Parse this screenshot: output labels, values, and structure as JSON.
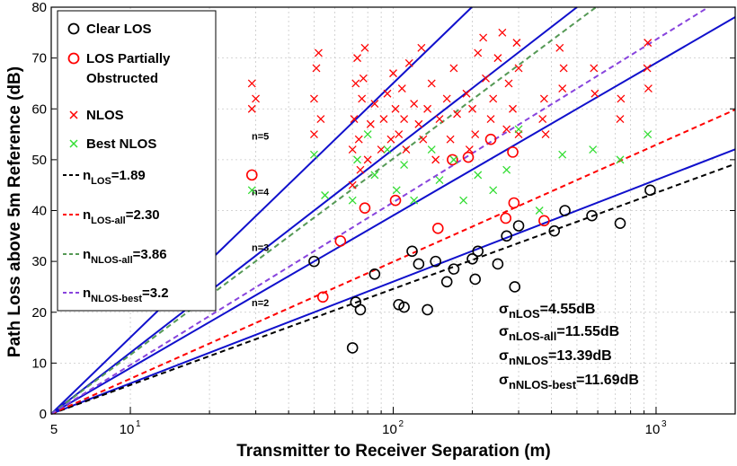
{
  "chart_data": {
    "type": "scatter",
    "title": "",
    "xlabel": "Transmitter to Receiver Separation (m)",
    "ylabel": "Path Loss above 5m Reference (dB)",
    "xscale": "log",
    "xlim": [
      5,
      2000
    ],
    "ylim": [
      0,
      80
    ],
    "x_ticks": [
      {
        "value": 10,
        "base": "10",
        "exp": "1"
      },
      {
        "value": 100,
        "base": "10",
        "exp": "2"
      },
      {
        "value": 1000,
        "base": "10",
        "exp": "3"
      }
    ],
    "x_extra_tick": {
      "value": 5,
      "label": "5"
    },
    "y_ticks": [
      "0",
      "10",
      "20",
      "30",
      "40",
      "50",
      "60",
      "70",
      "80"
    ],
    "grid": true,
    "legend_position": "top-left",
    "series": [
      {
        "name": "Clear LOS",
        "marker": "circle",
        "color": "#000000",
        "points": [
          [
            50,
            30
          ],
          [
            70,
            13
          ],
          [
            72,
            22
          ],
          [
            75,
            20.5
          ],
          [
            85,
            27.5
          ],
          [
            105,
            21.5
          ],
          [
            110,
            21
          ],
          [
            118,
            32
          ],
          [
            125,
            29.5
          ],
          [
            135,
            20.5
          ],
          [
            145,
            30
          ],
          [
            160,
            26
          ],
          [
            170,
            28.5
          ],
          [
            200,
            30.5
          ],
          [
            205,
            26.5
          ],
          [
            210,
            32
          ],
          [
            250,
            29.5
          ],
          [
            270,
            35
          ],
          [
            290,
            25
          ],
          [
            300,
            37
          ],
          [
            410,
            36
          ],
          [
            450,
            40
          ],
          [
            570,
            39
          ],
          [
            730,
            37.5
          ],
          [
            950,
            44
          ]
        ]
      },
      {
        "name": "LOS Partially Obstructed",
        "marker": "circle",
        "color": "#ff0000",
        "points": [
          [
            29,
            47
          ],
          [
            54,
            23
          ],
          [
            63,
            34
          ],
          [
            78,
            40.5
          ],
          [
            102,
            42
          ],
          [
            148,
            36.5
          ],
          [
            168,
            50
          ],
          [
            193,
            50.5
          ],
          [
            235,
            54
          ],
          [
            268,
            38.5
          ],
          [
            285,
            51.5
          ],
          [
            288,
            41.5
          ],
          [
            375,
            38
          ]
        ]
      },
      {
        "name": "NLOS",
        "marker": "x",
        "color": "#ff0000",
        "points": [
          [
            29,
            60
          ],
          [
            29,
            65
          ],
          [
            30,
            62
          ],
          [
            50,
            55
          ],
          [
            50,
            62
          ],
          [
            51,
            68
          ],
          [
            52,
            71
          ],
          [
            53,
            58
          ],
          [
            70,
            45
          ],
          [
            70,
            52
          ],
          [
            71,
            58
          ],
          [
            72,
            65
          ],
          [
            73,
            70
          ],
          [
            74,
            54
          ],
          [
            75,
            48
          ],
          [
            76,
            62
          ],
          [
            77,
            66
          ],
          [
            78,
            72
          ],
          [
            80,
            50
          ],
          [
            82,
            57
          ],
          [
            85,
            61
          ],
          [
            90,
            52
          ],
          [
            92,
            58
          ],
          [
            95,
            63
          ],
          [
            98,
            54
          ],
          [
            100,
            67
          ],
          [
            102,
            60
          ],
          [
            105,
            55
          ],
          [
            108,
            64
          ],
          [
            110,
            58
          ],
          [
            112,
            52
          ],
          [
            115,
            69
          ],
          [
            120,
            61
          ],
          [
            125,
            57
          ],
          [
            128,
            72
          ],
          [
            130,
            54
          ],
          [
            135,
            60
          ],
          [
            140,
            65
          ],
          [
            145,
            50
          ],
          [
            150,
            58
          ],
          [
            160,
            62
          ],
          [
            165,
            54
          ],
          [
            170,
            68
          ],
          [
            175,
            59
          ],
          [
            190,
            63
          ],
          [
            195,
            52
          ],
          [
            200,
            60
          ],
          [
            205,
            55
          ],
          [
            210,
            71
          ],
          [
            220,
            74
          ],
          [
            225,
            66
          ],
          [
            235,
            58
          ],
          [
            240,
            62
          ],
          [
            250,
            70
          ],
          [
            260,
            75
          ],
          [
            270,
            56
          ],
          [
            275,
            65
          ],
          [
            285,
            60
          ],
          [
            295,
            73
          ],
          [
            300,
            55
          ],
          [
            300,
            68
          ],
          [
            370,
            58
          ],
          [
            375,
            62
          ],
          [
            380,
            55
          ],
          [
            430,
            72
          ],
          [
            440,
            64
          ],
          [
            445,
            68
          ],
          [
            580,
            68
          ],
          [
            585,
            63
          ],
          [
            730,
            58
          ],
          [
            735,
            62
          ],
          [
            925,
            68
          ],
          [
            930,
            73
          ],
          [
            935,
            64
          ]
        ]
      },
      {
        "name": "Best NLOS",
        "marker": "x",
        "color": "#33dd33",
        "points": [
          [
            29,
            44
          ],
          [
            50,
            51
          ],
          [
            55,
            43
          ],
          [
            70,
            42
          ],
          [
            73,
            50
          ],
          [
            80,
            55
          ],
          [
            85,
            47
          ],
          [
            95,
            52
          ],
          [
            103,
            44
          ],
          [
            110,
            49
          ],
          [
            120,
            42
          ],
          [
            140,
            52
          ],
          [
            150,
            46
          ],
          [
            170,
            50
          ],
          [
            185,
            42
          ],
          [
            210,
            47
          ],
          [
            240,
            44
          ],
          [
            270,
            48
          ],
          [
            300,
            56
          ],
          [
            360,
            40
          ],
          [
            440,
            51
          ],
          [
            575,
            52
          ],
          [
            730,
            50
          ],
          [
            930,
            55
          ]
        ]
      }
    ],
    "fit_lines": [
      {
        "name": "n_LOS=1.89",
        "n": 1.89,
        "color": "#000000",
        "style": "dashed"
      },
      {
        "name": "n_LOS-all=2.30",
        "n": 2.3,
        "color": "#ff0000",
        "style": "dashed"
      },
      {
        "name": "n_NLOS-all=3.86",
        "n": 3.86,
        "color": "#559955",
        "style": "dashed"
      },
      {
        "name": "n_NLOS-best=3.2",
        "n": 3.2,
        "color": "#8844dd",
        "style": "dashed"
      }
    ],
    "reference_lines": [
      {
        "n": 2,
        "label": "n=2"
      },
      {
        "n": 3,
        "label": "n=3"
      },
      {
        "n": 4,
        "label": "n=4"
      },
      {
        "n": 5,
        "label": "n=5"
      }
    ],
    "reference_color": "#1010cc",
    "legend": [
      {
        "marker": "circle",
        "color": "#000000",
        "text": "Clear LOS"
      },
      {
        "marker": "circle",
        "color": "#ff0000",
        "text": "LOS Partially",
        "text2": "Obstructed"
      },
      {
        "marker": "x",
        "color": "#ff0000",
        "text": "NLOS"
      },
      {
        "marker": "x",
        "color": "#33dd33",
        "text": "Best NLOS"
      },
      {
        "marker": "dash",
        "color": "#000000",
        "base": "n",
        "sub": "LOS",
        "value": "=1.89"
      },
      {
        "marker": "dash",
        "color": "#ff0000",
        "base": "n",
        "sub": "LOS-all",
        "value": "=2.30"
      },
      {
        "marker": "dash",
        "color": "#559955",
        "base": "n",
        "sub": "NLOS-all",
        "value": "=3.86"
      },
      {
        "marker": "dash",
        "color": "#8844dd",
        "base": "n",
        "sub": "NLOS-best",
        "value": "=3.2"
      }
    ],
    "sigma_annotations": [
      {
        "base": "σ",
        "sub": "nLOS",
        "value": "=4.55dB"
      },
      {
        "base": "σ",
        "sub": "nLOS-all",
        "value": "=11.55dB"
      },
      {
        "base": "σ",
        "sub": "nNLOS",
        "value": "=13.39dB"
      },
      {
        "base": "σ",
        "sub": "nNLOS-best",
        "value": "=11.69dB"
      }
    ]
  }
}
